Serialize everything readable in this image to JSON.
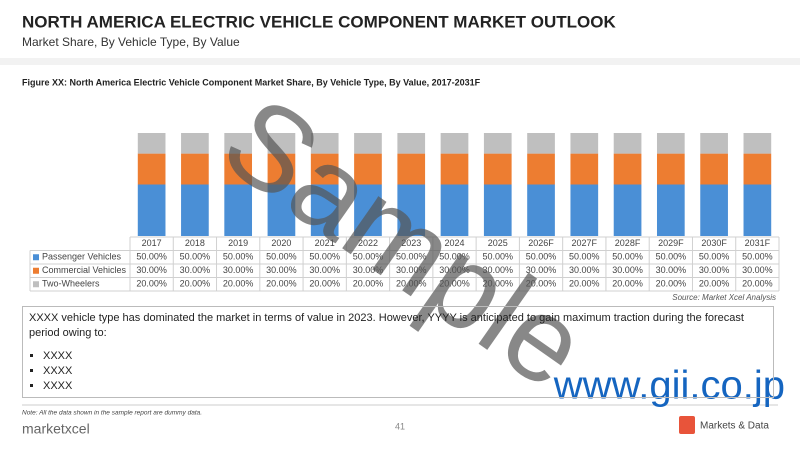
{
  "header": {
    "title": "NORTH AMERICA ELECTRIC VEHICLE COMPONENT MARKET OUTLOOK",
    "subtitle": "Market Share, By Vehicle Type, By Value"
  },
  "chart_data": {
    "type": "bar",
    "stacked": true,
    "title": "Figure XX: North America Electric Vehicle Component Market Share, By Vehicle Type, By Value, 2017-2031F",
    "categories": [
      "2017",
      "2018",
      "2019",
      "2020",
      "2021",
      "2022",
      "2023",
      "2024",
      "2025",
      "2026F",
      "2027F",
      "2028F",
      "2029F",
      "2030F",
      "2031F"
    ],
    "series": [
      {
        "name": "Passenger Vehicles",
        "color": "#4a8fd6",
        "values": [
          50,
          50,
          50,
          50,
          50,
          50,
          50,
          50,
          50,
          50,
          50,
          50,
          50,
          50,
          50
        ],
        "value_labels": [
          "50.00%",
          "50.00%",
          "50.00%",
          "50.00%",
          "50.00%",
          "50.00%",
          "50.00%",
          "50.00%",
          "50.00%",
          "50.00%",
          "50.00%",
          "50.00%",
          "50.00%",
          "50.00%",
          "50.00%"
        ]
      },
      {
        "name": "Commercial Vehicles",
        "color": "#ed7d31",
        "values": [
          30,
          30,
          30,
          30,
          30,
          30,
          30,
          30,
          30,
          30,
          30,
          30,
          30,
          30,
          30
        ],
        "value_labels": [
          "30.00%",
          "30.00%",
          "30.00%",
          "30.00%",
          "30.00%",
          "30.00%",
          "30.00%",
          "30.00%",
          "30.00%",
          "30.00%",
          "30.00%",
          "30.00%",
          "30.00%",
          "30.00%",
          "30.00%"
        ]
      },
      {
        "name": "Two-Wheelers",
        "color": "#bfbfbf",
        "values": [
          20,
          20,
          20,
          20,
          20,
          20,
          20,
          20,
          20,
          20,
          20,
          20,
          20,
          20,
          20
        ],
        "value_labels": [
          "20.00%",
          "20.00%",
          "20.00%",
          "20.00%",
          "20.00%",
          "20.00%",
          "20.00%",
          "20.00%",
          "20.00%",
          "20.00%",
          "20.00%",
          "20.00%",
          "20.00%",
          "20.00%",
          "20.00%"
        ]
      }
    ],
    "ylim": [
      0,
      100
    ],
    "source": "Source: Market Xcel Analysis"
  },
  "text": {
    "paragraph": "XXXX vehicle type has dominated the market in terms of value in 2023. However, YYYY is anticipated to gain maximum traction during the forecast period owing to:",
    "bullets": [
      "XXXX",
      "XXXX",
      "XXXX"
    ]
  },
  "footer": {
    "note": "Note: All the data shown in the sample report are dummy data.",
    "logo": "marketxcel",
    "page": "41",
    "brand": "Markets & Data"
  },
  "watermark": {
    "sample": "Sample",
    "site": "www.gii.co.jp"
  }
}
